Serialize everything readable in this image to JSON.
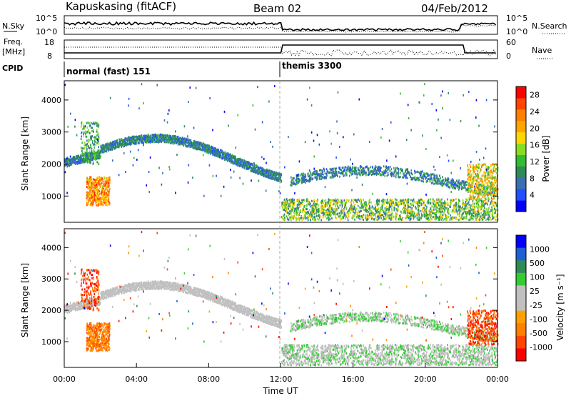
{
  "header": {
    "station": "Kapuskasing (fitACF)",
    "beam": "Beam 02",
    "date": "04/Feb/2012"
  },
  "noise_panel": {
    "left_label": "N.Sky",
    "right_label": "N.Search",
    "y_ticks": [
      "10^5",
      "10^0"
    ]
  },
  "freq_panel": {
    "left_label_1": "Freq.",
    "left_label_2": "[MHz]",
    "right_label": "Nave",
    "left_ticks": [
      "18",
      "8"
    ],
    "right_ticks": [
      "60",
      "0"
    ]
  },
  "cpid_panel": {
    "label": "CPID",
    "programs": [
      {
        "name": "normal (fast) 151",
        "start": "00:00"
      },
      {
        "name": "themis 3300",
        "start": "12:00"
      }
    ]
  },
  "colors": {
    "power_scale": [
      "#0000ff",
      "#2050ff",
      "#3a6fb0",
      "#2e8b57",
      "#33bb33",
      "#88dd22",
      "#ffd700",
      "#ffa500",
      "#ff7f00",
      "#ff4500",
      "#ff0000"
    ],
    "velocity_scale": [
      "#0000ff",
      "#1e5ed6",
      "#2e8b57",
      "#33cc33",
      "#c0c0c0",
      "#c0c0c0",
      "#ffa000",
      "#ff7f00",
      "#ff4500",
      "#ff0000"
    ]
  },
  "chart_data": [
    {
      "type": "heatmap",
      "name_panel": "power",
      "ylabel": "Slant Range [km]",
      "ylim": [
        180,
        4600
      ],
      "y_ticks": [
        1000,
        2000,
        3000,
        4000
      ],
      "xlim": [
        "00:00",
        "24:00"
      ],
      "colorbar": {
        "label": "Power [dB]",
        "ticks": [
          4,
          8,
          12,
          16,
          20,
          24,
          28
        ],
        "range": [
          0,
          30
        ]
      },
      "features": [
        {
          "time_range": [
            "00:00",
            "12:00"
          ],
          "range_km": [
            2000,
            2900
          ],
          "power_db": [
            4,
            12
          ],
          "description_key": "arc"
        },
        {
          "time_range": [
            "01:30",
            "02:30"
          ],
          "range_km": [
            700,
            1600
          ],
          "power_db": [
            16,
            28
          ]
        },
        {
          "time_range": [
            "12:00",
            "24:00"
          ],
          "range_km": [
            300,
            900
          ],
          "power_db": [
            8,
            20
          ]
        },
        {
          "time_range": [
            "22:00",
            "24:00"
          ],
          "range_km": [
            1000,
            2000
          ],
          "power_db": [
            12,
            24
          ]
        }
      ]
    },
    {
      "type": "heatmap",
      "name_panel": "velocity",
      "ylabel": "Slant Range [km]",
      "ylim": [
        180,
        4600
      ],
      "y_ticks": [
        1000,
        2000,
        3000,
        4000
      ],
      "xlabel": "Time UT",
      "x_ticks": [
        "00:00",
        "04:00",
        "08:00",
        "12:00",
        "16:00",
        "20:00",
        "00:00"
      ],
      "colorbar": {
        "label": "Velocity [m s⁻¹]",
        "ticks": [
          1000,
          500,
          100,
          25,
          -25,
          -100,
          -500,
          -1000
        ]
      }
    }
  ]
}
